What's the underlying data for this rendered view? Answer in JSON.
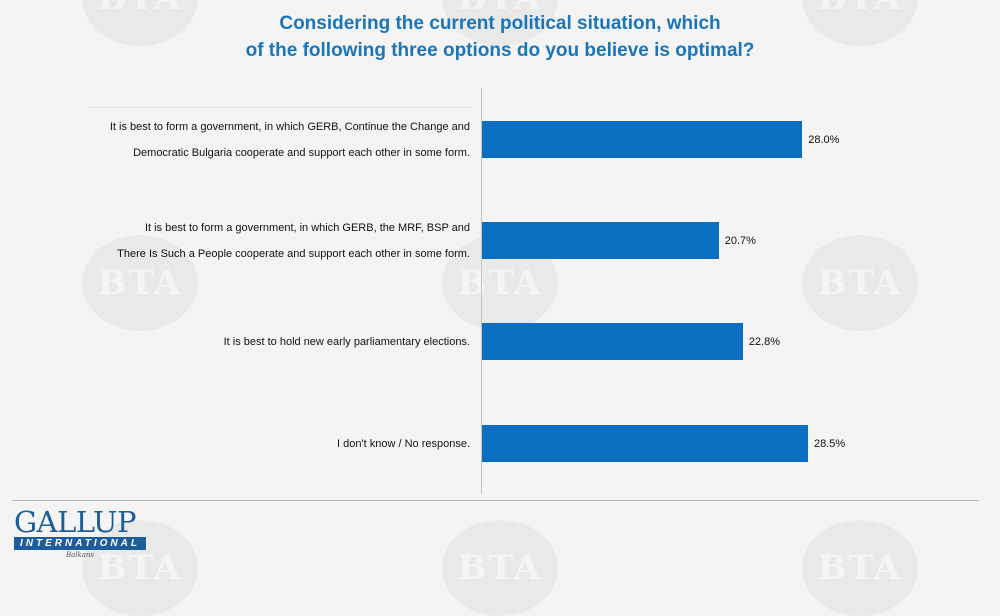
{
  "chart_data": {
    "type": "bar",
    "orientation": "horizontal",
    "title": "Considering the current political situation, which of the following three options do you believe is optimal?",
    "title_lines": [
      "Considering the current political situation, which",
      "of the following three options do you believe is optimal?"
    ],
    "categories": [
      [
        "It is best to form a government, in which GERB, Continue the Change and",
        "Democratic Bulgaria cooperate and support each other in some form."
      ],
      [
        "It is best to form a government, in which GERB, the MRF, BSP and",
        "There Is Such a People cooperate and support each other in some form."
      ],
      [
        "It is best to hold new early parliamentary elections."
      ],
      [
        "I don't know / No response."
      ]
    ],
    "values": [
      28.0,
      20.7,
      22.8,
      28.5
    ],
    "value_labels": [
      "28.0%",
      "20.7%",
      "22.8%",
      "28.5%"
    ],
    "bar_color": "#0b6fc1",
    "xlim": [
      0,
      40
    ],
    "grid": false,
    "legend": "none"
  },
  "logo": {
    "main": "GALLUP",
    "band": "INTERNATIONAL",
    "sub": "Balkans",
    "color": "#1d5d9b"
  },
  "watermark_text": "BTA",
  "title_color": "#1a75bb"
}
